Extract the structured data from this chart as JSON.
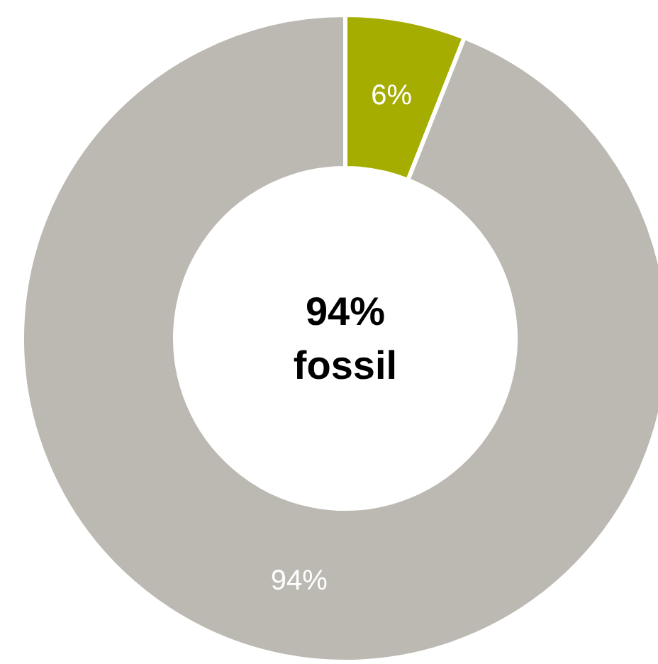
{
  "chart_data": {
    "type": "donut",
    "categories": [
      null,
      null
    ],
    "values": [
      6,
      94
    ],
    "colors": [
      "#a5ad00",
      "#bcb9b2"
    ],
    "value_labels": [
      "6%",
      "94%"
    ],
    "annotations": [
      "94%",
      "fossil"
    ]
  }
}
